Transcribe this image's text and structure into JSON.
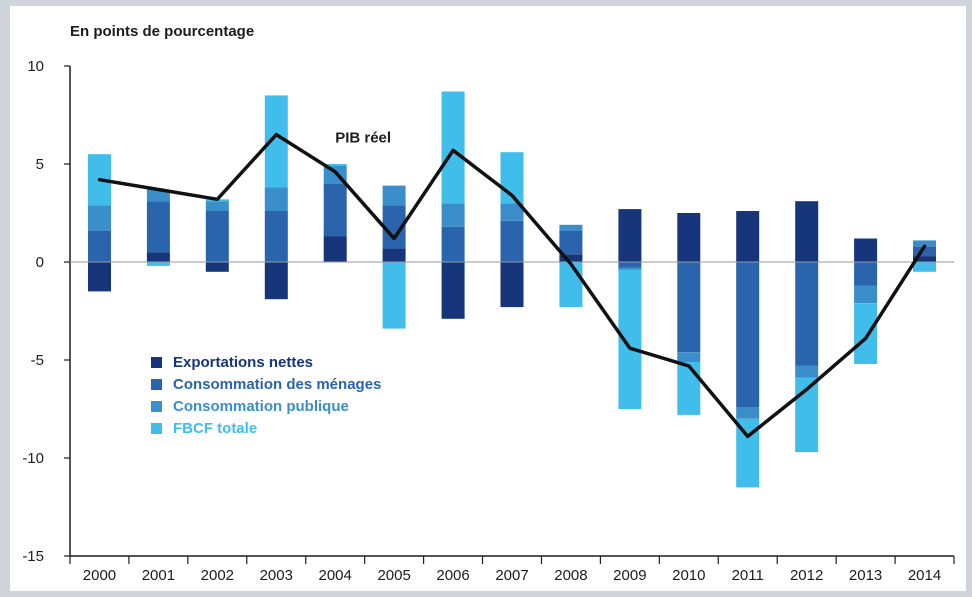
{
  "chart_data": {
    "type": "bar",
    "stacked": true,
    "unit_label": "En points de pourcentage",
    "categories": [
      "2000",
      "2001",
      "2002",
      "2003",
      "2004",
      "2005",
      "2006",
      "2007",
      "2008",
      "2009",
      "2010",
      "2011",
      "2012",
      "2013",
      "2014"
    ],
    "ylim": [
      -15,
      10
    ],
    "yticks": [
      10,
      5,
      0,
      -5,
      -10,
      -15
    ],
    "grid": false,
    "legend_position": "bottom-left",
    "series": [
      {
        "name": "Exportations nettes",
        "color": "#16357a",
        "values": [
          -1.5,
          0.5,
          -0.5,
          -1.9,
          1.3,
          0.7,
          -2.9,
          -2.3,
          0.4,
          2.7,
          2.5,
          2.6,
          3.1,
          1.2,
          0.3
        ]
      },
      {
        "name": "Consommation des ménages",
        "color": "#2a64ad",
        "values": [
          1.6,
          2.6,
          2.6,
          2.6,
          2.7,
          2.2,
          1.8,
          2.1,
          1.2,
          -0.3,
          -4.6,
          -7.4,
          -5.3,
          -1.2,
          0.5
        ]
      },
      {
        "name": "Consommation publique",
        "color": "#3a8fcb",
        "values": [
          1.3,
          0.6,
          0.5,
          1.2,
          0.9,
          1.0,
          1.2,
          0.9,
          0.3,
          -0.1,
          -0.5,
          -0.6,
          -0.6,
          -0.9,
          0.3
        ]
      },
      {
        "name": "FBCF totale",
        "color": "#41bdec",
        "values": [
          2.6,
          -0.2,
          0.1,
          4.7,
          0.1,
          -3.4,
          5.7,
          2.6,
          -2.3,
          -7.1,
          -2.7,
          -3.5,
          -3.8,
          -3.1,
          -0.5
        ]
      }
    ],
    "line": {
      "name": "PIB réel",
      "color": "#111111",
      "values": [
        4.2,
        3.7,
        3.2,
        6.5,
        4.6,
        1.2,
        5.7,
        3.4,
        -0.1,
        -4.4,
        -5.3,
        -8.9,
        -6.5,
        -3.9,
        0.8
      ]
    }
  }
}
